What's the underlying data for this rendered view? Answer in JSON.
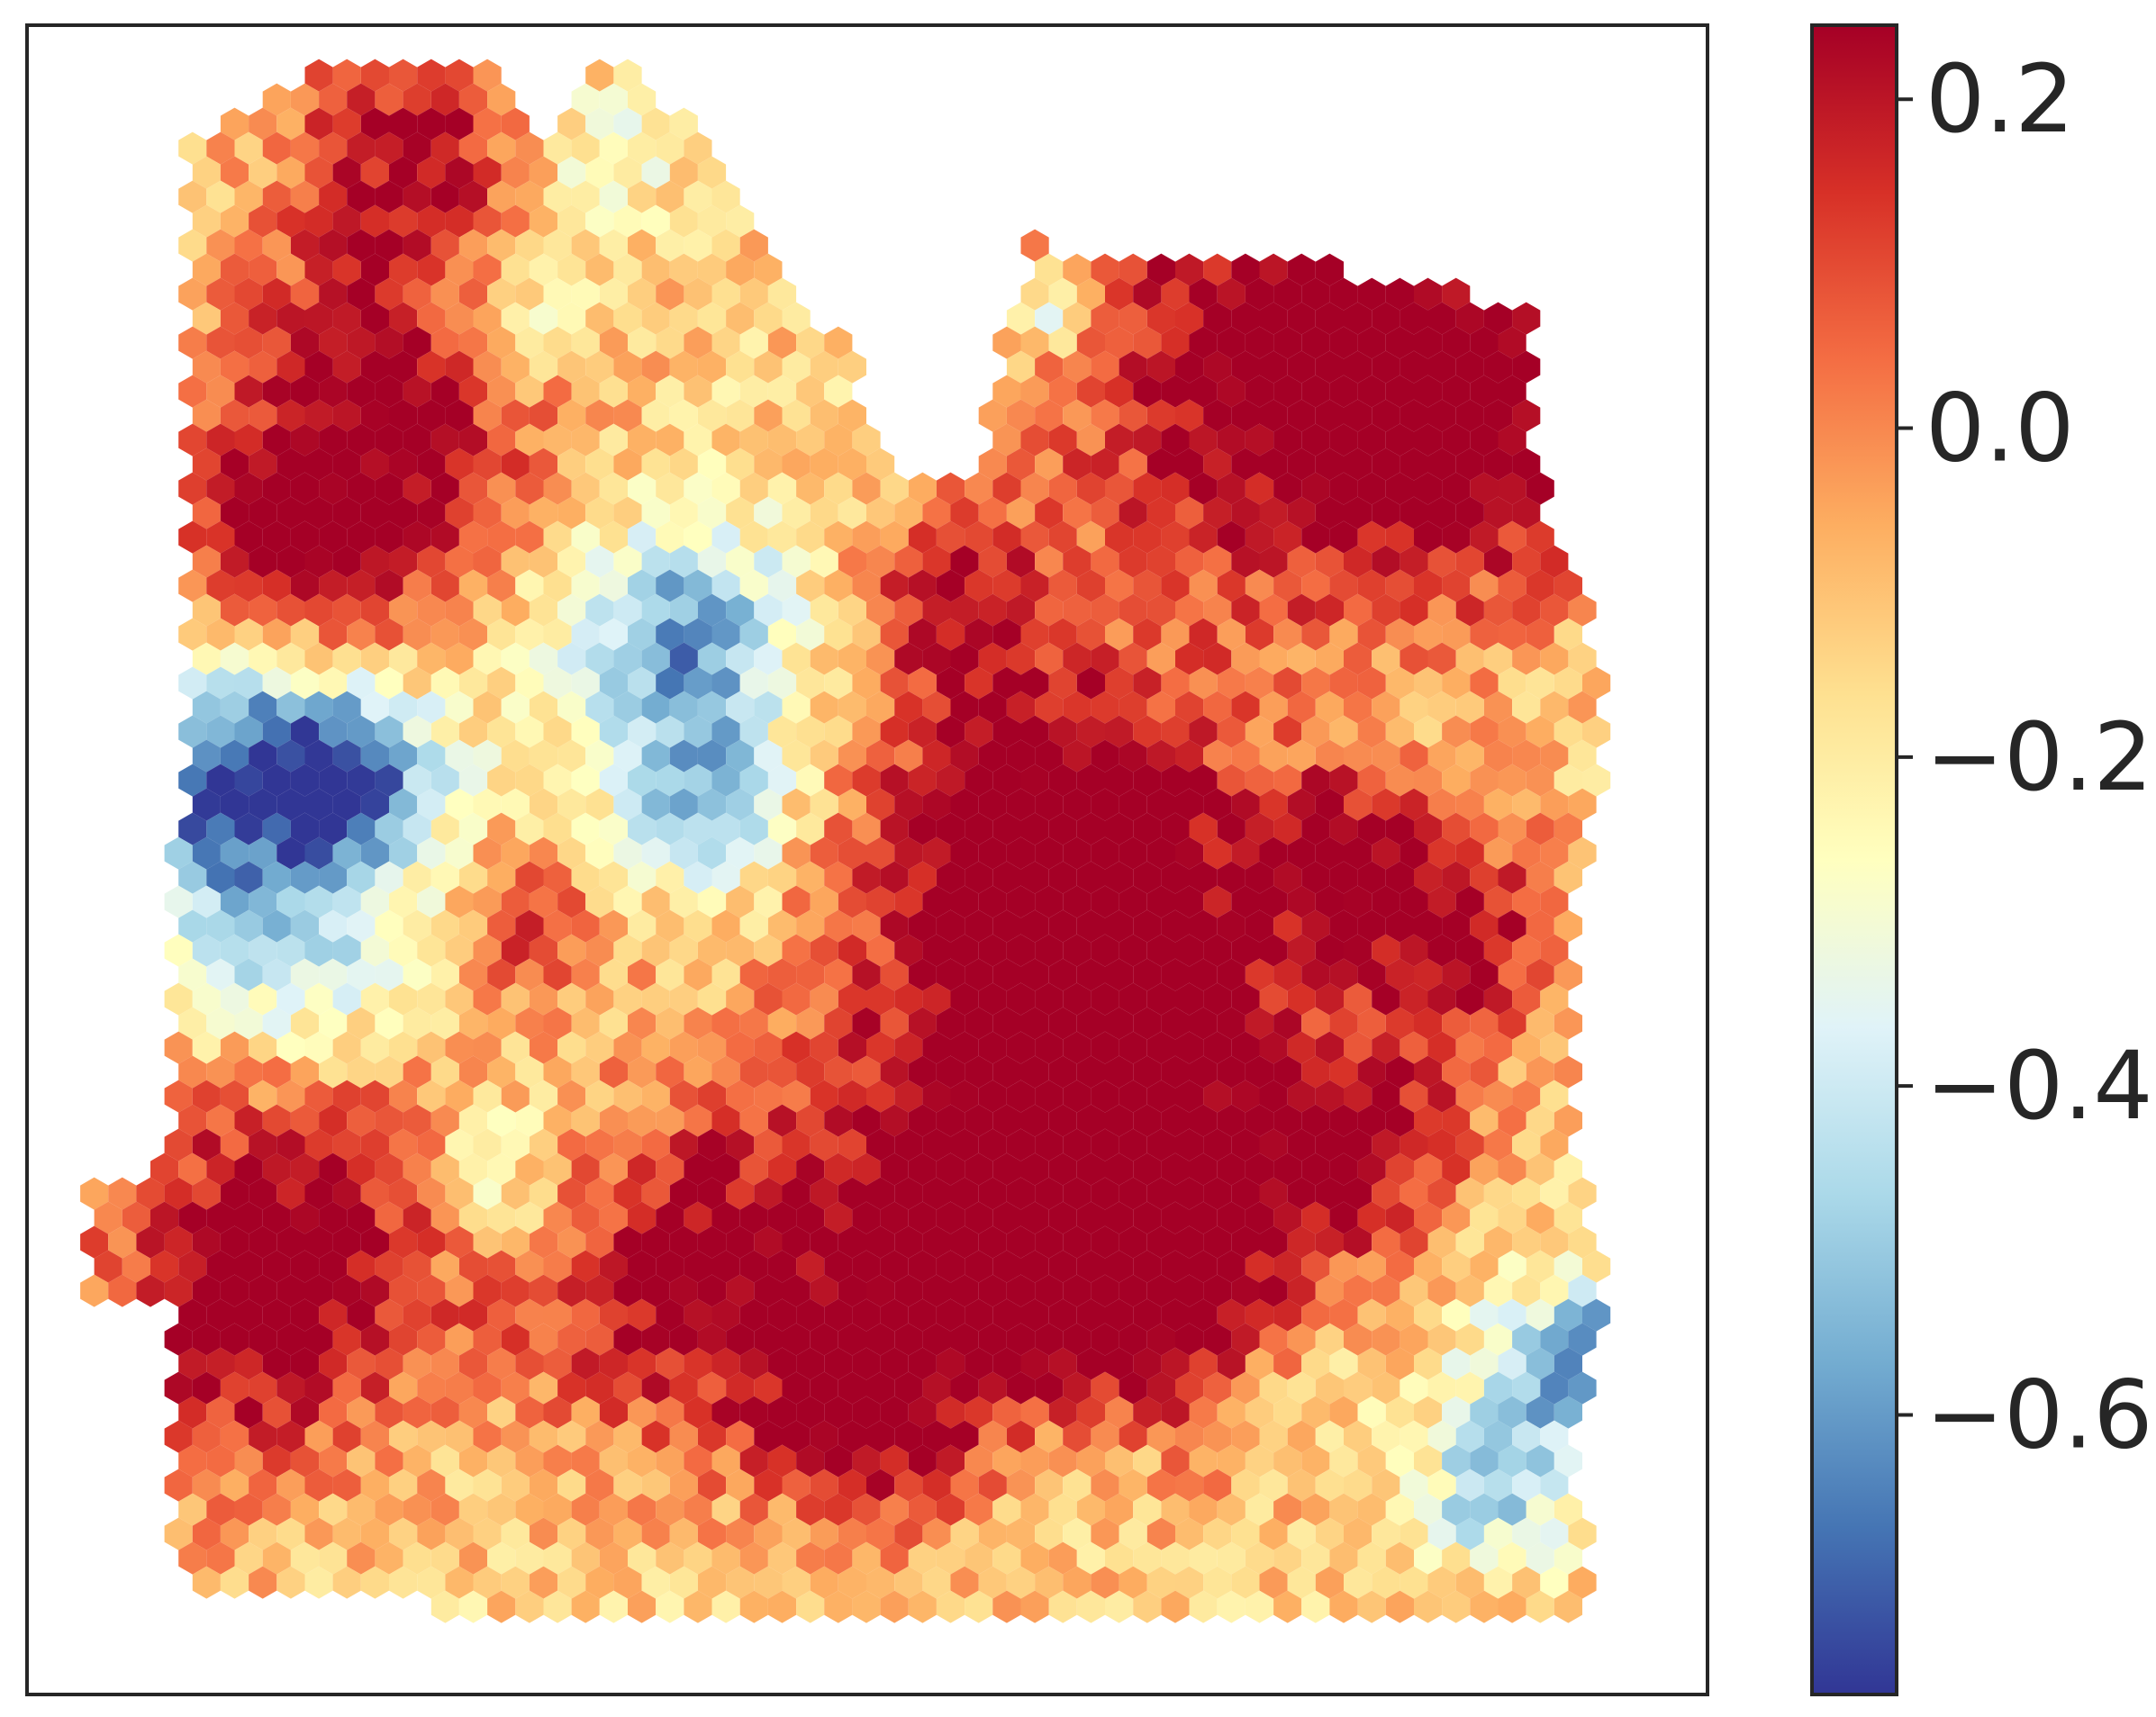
{
  "chart_data": {
    "type": "heatmap",
    "title": "",
    "xlabel": "",
    "ylabel": "",
    "grid": false,
    "marker": "hexagon",
    "colormap": {
      "name": "RdYlBu_r",
      "stops": [
        "#313695",
        "#4575b4",
        "#74add1",
        "#abd9e9",
        "#e0f3f8",
        "#ffffbf",
        "#fee090",
        "#fdae61",
        "#f46d43",
        "#d73027",
        "#a50026"
      ]
    },
    "colorbar": {
      "range": [
        -0.77,
        0.245
      ],
      "ticks": [
        0.2,
        0.0,
        -0.2,
        -0.4,
        -0.6
      ],
      "tick_labels": [
        "0.2",
        "0.0",
        "−0.2",
        "−0.4",
        "−0.6"
      ]
    },
    "value_range": [
      -0.77,
      0.245
    ],
    "hot_regions": [
      {
        "x": 0.22,
        "y": 0.21,
        "r": 0.1,
        "v": 0.22
      },
      {
        "x": 0.16,
        "y": 0.32,
        "r": 0.09,
        "v": 0.23
      },
      {
        "x": 0.23,
        "y": 0.07,
        "r": 0.08,
        "v": 0.16
      },
      {
        "x": 0.6,
        "y": 0.48,
        "r": 0.1,
        "v": 0.18
      },
      {
        "x": 0.64,
        "y": 0.57,
        "r": 0.14,
        "v": 0.24
      },
      {
        "x": 0.58,
        "y": 0.73,
        "r": 0.13,
        "v": 0.23
      },
      {
        "x": 0.69,
        "y": 0.75,
        "r": 0.1,
        "v": 0.21
      },
      {
        "x": 0.73,
        "y": 0.2,
        "r": 0.15,
        "v": 0.22
      },
      {
        "x": 0.85,
        "y": 0.23,
        "r": 0.12,
        "v": 0.22
      },
      {
        "x": 0.39,
        "y": 0.75,
        "r": 0.11,
        "v": 0.22
      },
      {
        "x": 0.17,
        "y": 0.7,
        "r": 0.1,
        "v": 0.16
      },
      {
        "x": 0.12,
        "y": 0.79,
        "r": 0.1,
        "v": 0.17
      },
      {
        "x": 0.86,
        "y": 0.55,
        "r": 0.07,
        "v": 0.18
      },
      {
        "x": 0.78,
        "y": 0.5,
        "r": 0.05,
        "v": 0.2
      },
      {
        "x": 0.8,
        "y": 0.67,
        "r": 0.06,
        "v": 0.15
      },
      {
        "x": 0.5,
        "y": 0.84,
        "r": 0.06,
        "v": 0.16
      },
      {
        "x": 0.55,
        "y": 0.35,
        "r": 0.06,
        "v": 0.13
      },
      {
        "x": 0.3,
        "y": 0.54,
        "r": 0.05,
        "v": 0.08
      }
    ],
    "cold_regions": [
      {
        "x": 0.11,
        "y": 0.45,
        "r": 0.09,
        "v": -0.7
      },
      {
        "x": 0.19,
        "y": 0.45,
        "r": 0.06,
        "v": -0.6
      },
      {
        "x": 0.39,
        "y": 0.37,
        "r": 0.07,
        "v": -0.62
      },
      {
        "x": 0.4,
        "y": 0.47,
        "r": 0.05,
        "v": -0.52
      },
      {
        "x": 0.17,
        "y": 0.57,
        "r": 0.06,
        "v": -0.42
      },
      {
        "x": 0.29,
        "y": 0.17,
        "r": 0.05,
        "v": -0.38
      },
      {
        "x": 0.34,
        "y": 0.08,
        "r": 0.05,
        "v": -0.33
      },
      {
        "x": 0.91,
        "y": 0.81,
        "r": 0.05,
        "v": -0.58
      },
      {
        "x": 0.95,
        "y": 0.79,
        "r": 0.03,
        "v": -0.62
      },
      {
        "x": 0.87,
        "y": 0.88,
        "r": 0.04,
        "v": -0.48
      },
      {
        "x": 0.76,
        "y": 0.8,
        "r": 0.06,
        "v": -0.3
      },
      {
        "x": 0.63,
        "y": 0.86,
        "r": 0.05,
        "v": -0.28
      },
      {
        "x": 0.61,
        "y": 0.17,
        "r": 0.03,
        "v": -0.45
      },
      {
        "x": 0.28,
        "y": 0.69,
        "r": 0.05,
        "v": -0.4
      }
    ]
  }
}
